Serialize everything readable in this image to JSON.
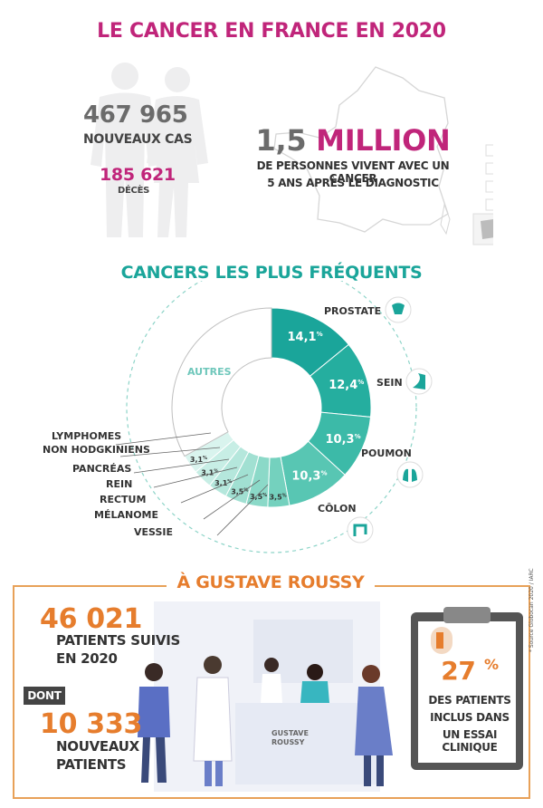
{
  "title": "LE CANCER EN FRANCE EN 2020",
  "stats": {
    "new_cases_value": "467 965",
    "new_cases_label": "NOUVEAUX CAS",
    "deaths_value": "185 621",
    "deaths_label": "DÉCÈS",
    "million_prefix": "1,5",
    "million_word": "MILLION",
    "million_line1": "DE PERSONNES VIVENT AVEC UN CANCER",
    "million_line2": "5 ANS APRÈS LE DIAGNOSTIC"
  },
  "cancers": {
    "title": "CANCERS LES PLUS FRÉQUENTS",
    "prostate": "PROSTATE",
    "sein": "SEIN",
    "poumon": "POUMON",
    "colon": "CÔLON",
    "autres": "AUTRES",
    "lymphomes1": "LYMPHOMES",
    "lymphomes2": "NON HODGKINIENS",
    "pancreas": "PANCRÉAS",
    "rein": "REIN",
    "rectum": "RECTUM",
    "melanome": "MÉLANOME",
    "vessie": "VESSIE"
  },
  "chart_data": {
    "type": "pie",
    "categories": [
      "PROSTATE",
      "SEIN",
      "POUMON",
      "CÔLON",
      "VESSIE",
      "MÉLANOME",
      "RECTUM",
      "REIN",
      "PANCRÉAS",
      "LYMPHOMES NON HODGKINIENS",
      "AUTRES"
    ],
    "values": [
      14.1,
      12.4,
      10.3,
      10.3,
      3.5,
      3.5,
      3.5,
      3.1,
      3.1,
      3.1,
      33.1
    ],
    "labels": [
      "14,1",
      "12,4",
      "10,3",
      "10,3",
      "3,5",
      "3,5",
      "3,5",
      "3,1",
      "3,1",
      "3,1",
      ""
    ],
    "unit": "%",
    "colors": [
      "#1aa59a",
      "#25ae9f",
      "#3cbaa8",
      "#58c6b3",
      "#74d1be",
      "#8bd9c8",
      "#a1e0d2",
      "#b5e7dc",
      "#c7eee5",
      "#d9f4ee",
      "#ffffff"
    ]
  },
  "gustave": {
    "title": "À GUSTAVE ROUSSY",
    "patients_value": "46 021",
    "patients_line1": "PATIENTS SUIVIS",
    "patients_line2": "EN 2020",
    "dont": "DONT",
    "new_value": "10 333",
    "new_line1": "NOUVEAUX",
    "new_line2": "PATIENTS",
    "clip_pct": "27",
    "clip_pct_unit": "%",
    "clip_line1": "DES PATIENTS",
    "clip_line2": "INCLUS DANS",
    "clip_line3": "UN ESSAI CLINIQUE",
    "desk_brand1": "GUSTAVE",
    "desk_brand2": "ROUSSY",
    "source": "* Source Globocan 2020 / IARC"
  },
  "colors": {
    "magenta": "#c0257a",
    "teal": "#1aa59a",
    "orange": "#e67d2d"
  }
}
